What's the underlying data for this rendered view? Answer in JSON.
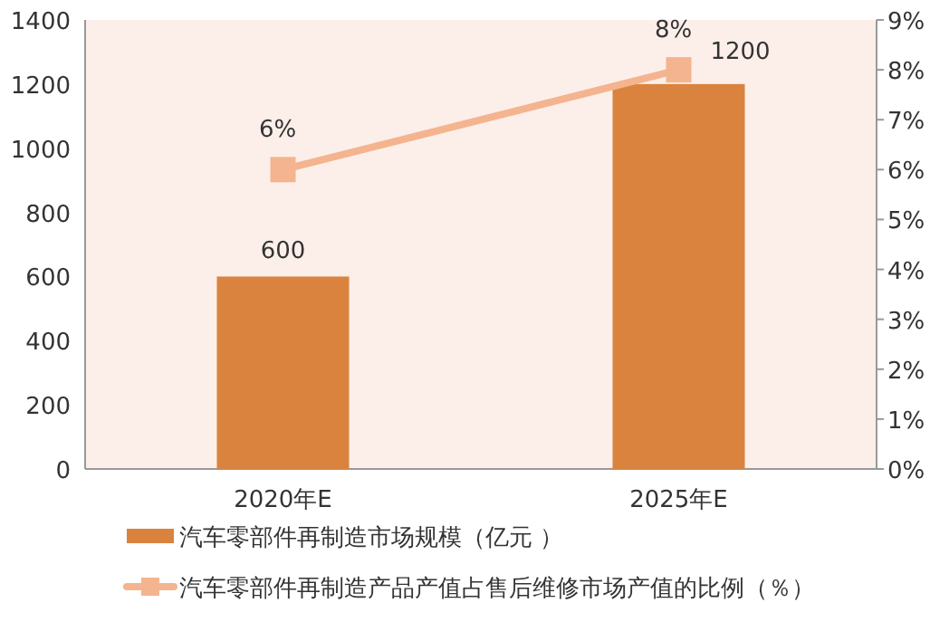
{
  "chart_data": {
    "type": "bar",
    "categories": [
      "2020年E",
      "2025年E"
    ],
    "series": [
      {
        "name": "汽车零部件再制造市场规模（亿元 ）",
        "color": "#d9833e",
        "values": [
          600,
          1200
        ],
        "value_labels": [
          "600",
          "1200"
        ]
      },
      {
        "name": "汽车零部件再制造产品产值占售后维修市场产值的比例（％）",
        "type": "line",
        "axis": "y2",
        "color": "#f4b48f",
        "marker": "square",
        "values": [
          6,
          8
        ],
        "value_labels": [
          "6%",
          "8%"
        ]
      }
    ],
    "ylim": [
      0,
      1400
    ],
    "yticks": [
      0,
      200,
      400,
      600,
      800,
      1000,
      1200,
      1400
    ],
    "y2lim": [
      0,
      9
    ],
    "y2ticks": [
      {
        "value": 0,
        "label": "0%"
      },
      {
        "value": 1,
        "label": "1%"
      },
      {
        "value": 2,
        "label": "2%"
      },
      {
        "value": 3,
        "label": "3%"
      },
      {
        "value": 4,
        "label": "4%"
      },
      {
        "value": 5,
        "label": "5%"
      },
      {
        "value": 6,
        "label": "6%"
      },
      {
        "value": 7,
        "label": "7%"
      },
      {
        "value": 8,
        "label": "8%"
      },
      {
        "value": 9,
        "label": "9%"
      }
    ],
    "legend": "bottom"
  }
}
